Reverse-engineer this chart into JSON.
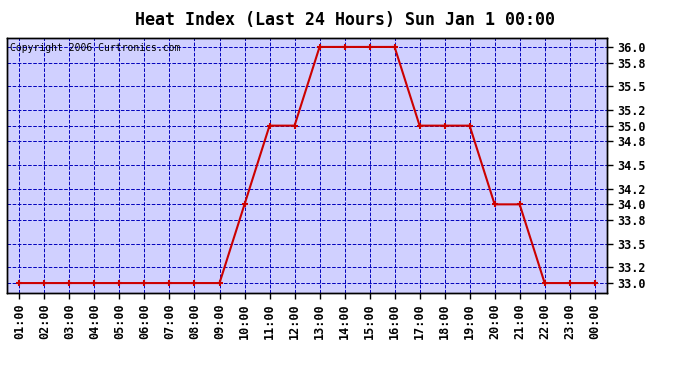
{
  "title": "Heat Index (Last 24 Hours) Sun Jan 1 00:00",
  "copyright": "Copyright 2006 Curtronics.com",
  "x_labels": [
    "01:00",
    "02:00",
    "03:00",
    "04:00",
    "05:00",
    "06:00",
    "07:00",
    "08:00",
    "09:00",
    "10:00",
    "11:00",
    "12:00",
    "13:00",
    "14:00",
    "15:00",
    "16:00",
    "17:00",
    "18:00",
    "19:00",
    "20:00",
    "21:00",
    "22:00",
    "23:00",
    "00:00"
  ],
  "x_values": [
    1,
    2,
    3,
    4,
    5,
    6,
    7,
    8,
    9,
    10,
    11,
    12,
    13,
    14,
    15,
    16,
    17,
    18,
    19,
    20,
    21,
    22,
    23,
    24
  ],
  "y_values": [
    33.0,
    33.0,
    33.0,
    33.0,
    33.0,
    33.0,
    33.0,
    33.0,
    33.0,
    34.0,
    35.0,
    35.0,
    36.0,
    36.0,
    36.0,
    36.0,
    35.0,
    35.0,
    35.0,
    34.0,
    34.0,
    33.0,
    33.0,
    33.0
  ],
  "yticks": [
    33.0,
    33.2,
    33.5,
    33.8,
    34.0,
    34.2,
    34.5,
    34.8,
    35.0,
    35.2,
    35.5,
    35.8,
    36.0
  ],
  "ytick_labels": [
    "33.0",
    "33.2",
    "33.5",
    "33.8",
    "34.0",
    "34.2",
    "34.5",
    "34.8",
    "35.0",
    "35.2",
    "35.5",
    "35.8",
    "36.0"
  ],
  "line_color": "#cc0000",
  "marker_color": "#cc0000",
  "outer_bg_color": "#ffffff",
  "plot_bg_color": "#d0d0ff",
  "grid_color": "#0000bb",
  "title_fontsize": 12,
  "copyright_fontsize": 7,
  "tick_fontsize": 8.5
}
